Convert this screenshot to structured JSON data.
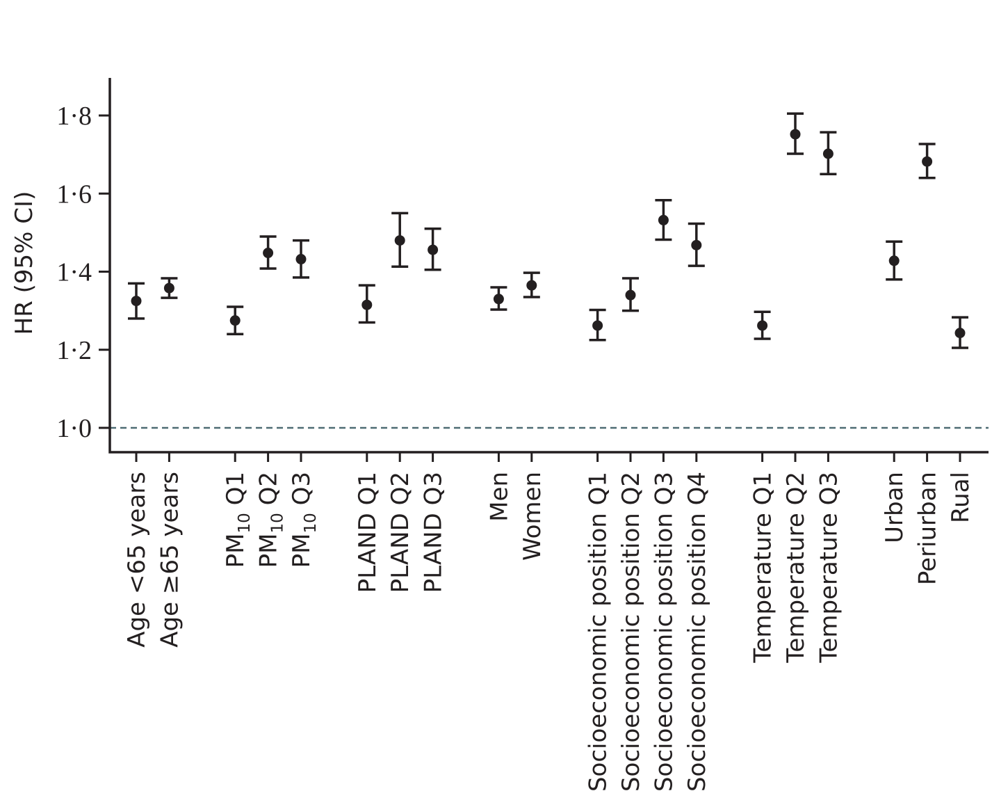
{
  "chart_data": {
    "type": "scatter",
    "ylabel": "HR (95% CI)",
    "ylim": [
      0.94,
      1.9
    ],
    "yticks": [
      {
        "value": 1.0,
        "label": "1·0"
      },
      {
        "value": 1.2,
        "label": "1·2"
      },
      {
        "value": 1.4,
        "label": "1·4"
      },
      {
        "value": 1.6,
        "label": "1·6"
      },
      {
        "value": 1.8,
        "label": "1·8"
      }
    ],
    "reference_line": 1.0,
    "grid": false,
    "groups": [
      {
        "items": [
          {
            "label": "Age <65 years",
            "hr": 1.325,
            "lo": 1.28,
            "hi": 1.37
          },
          {
            "label": "Age ≥65 years",
            "hr": 1.358,
            "lo": 1.333,
            "hi": 1.383
          }
        ]
      },
      {
        "items": [
          {
            "label": "PM",
            "sub": "10",
            "suffix": " Q1",
            "hr": 1.275,
            "lo": 1.24,
            "hi": 1.31
          },
          {
            "label": "PM",
            "sub": "10",
            "suffix": " Q2",
            "hr": 1.448,
            "lo": 1.408,
            "hi": 1.49
          },
          {
            "label": "PM",
            "sub": "10",
            "suffix": " Q3",
            "hr": 1.432,
            "lo": 1.385,
            "hi": 1.48
          }
        ]
      },
      {
        "items": [
          {
            "label": "PLAND Q1",
            "hr": 1.315,
            "lo": 1.27,
            "hi": 1.365
          },
          {
            "label": "PLAND Q2",
            "hr": 1.48,
            "lo": 1.413,
            "hi": 1.55
          },
          {
            "label": "PLAND Q3",
            "hr": 1.456,
            "lo": 1.405,
            "hi": 1.51
          }
        ]
      },
      {
        "items": [
          {
            "label": "Men",
            "hr": 1.33,
            "lo": 1.303,
            "hi": 1.36
          },
          {
            "label": "Women",
            "hr": 1.365,
            "lo": 1.335,
            "hi": 1.397
          }
        ]
      },
      {
        "items": [
          {
            "label": "Socioeconomic position Q1",
            "hr": 1.262,
            "lo": 1.225,
            "hi": 1.302
          },
          {
            "label": "Socioeconomic position Q2",
            "hr": 1.34,
            "lo": 1.3,
            "hi": 1.383
          },
          {
            "label": "Socioeconomic position Q3",
            "hr": 1.532,
            "lo": 1.482,
            "hi": 1.583
          },
          {
            "label": "Socioeconomic position Q4",
            "hr": 1.468,
            "lo": 1.415,
            "hi": 1.523
          }
        ]
      },
      {
        "items": [
          {
            "label": "Temperature Q1",
            "hr": 1.262,
            "lo": 1.228,
            "hi": 1.297
          },
          {
            "label": "Temperature Q2",
            "hr": 1.752,
            "lo": 1.702,
            "hi": 1.805
          },
          {
            "label": "Temperature Q3",
            "hr": 1.702,
            "lo": 1.65,
            "hi": 1.757
          }
        ]
      },
      {
        "items": [
          {
            "label": "Urban",
            "hr": 1.428,
            "lo": 1.38,
            "hi": 1.477
          },
          {
            "label": "Periurban",
            "hr": 1.682,
            "lo": 1.64,
            "hi": 1.727
          },
          {
            "label": "Rual",
            "hr": 1.243,
            "lo": 1.205,
            "hi": 1.283
          }
        ]
      }
    ]
  }
}
